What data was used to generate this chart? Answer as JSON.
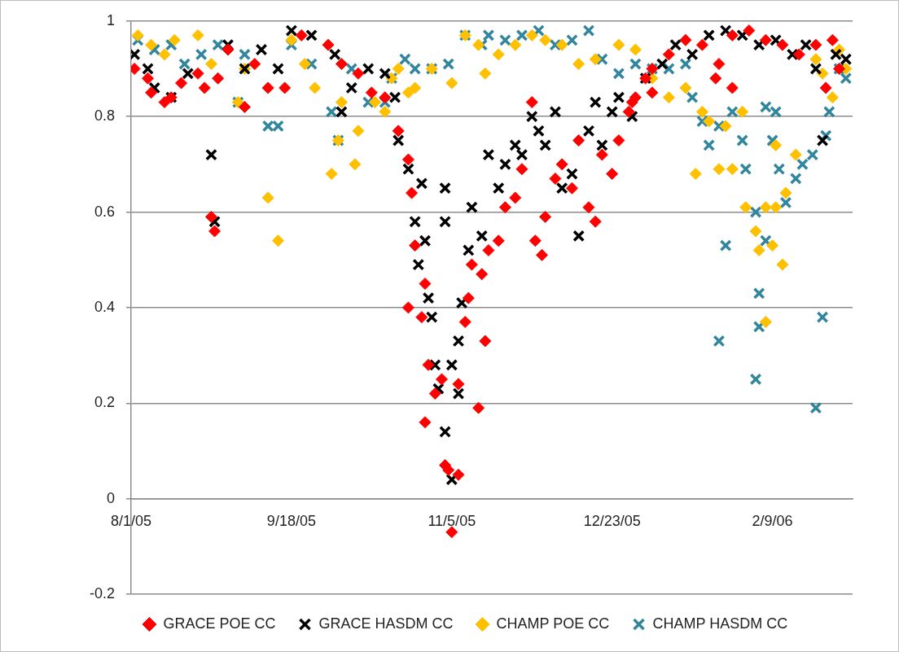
{
  "chart_data": {
    "type": "scatter",
    "xlim": [
      "2005-08-01",
      "2006-03-05"
    ],
    "xticks": [
      {
        "value": "2005-08-01",
        "label": "8/1/05"
      },
      {
        "value": "2005-09-18",
        "label": "9/18/05"
      },
      {
        "value": "2005-11-05",
        "label": "11/5/05"
      },
      {
        "value": "2005-12-23",
        "label": "12/23/05"
      },
      {
        "value": "2006-02-09",
        "label": "2/9/06"
      }
    ],
    "ylim": [
      -0.2,
      1
    ],
    "yticks": [
      -0.2,
      0,
      0.2,
      0.4,
      0.6,
      0.8,
      1
    ],
    "grid": "y",
    "legend": "bottom",
    "series": [
      {
        "name": "GRACE POE CC",
        "color": "#ff0000",
        "marker": "diamond",
        "x": [
          "2005-08-02",
          "2005-08-06",
          "2005-08-07",
          "2005-08-11",
          "2005-08-13",
          "2005-08-16",
          "2005-08-21",
          "2005-08-23",
          "2005-08-25",
          "2005-08-26",
          "2005-08-27",
          "2005-08-30",
          "2005-09-04",
          "2005-09-07",
          "2005-09-11",
          "2005-09-16",
          "2005-09-21",
          "2005-09-29",
          "2005-10-03",
          "2005-10-08",
          "2005-10-12",
          "2005-10-16",
          "2005-10-20",
          "2005-10-23",
          "2005-10-24",
          "2005-10-25",
          "2005-10-23",
          "2005-10-27",
          "2005-10-28",
          "2005-10-29",
          "2005-10-28",
          "2005-10-31",
          "2005-11-02",
          "2005-11-03",
          "2005-11-05",
          "2005-11-04",
          "2005-11-07",
          "2005-11-07",
          "2005-11-09",
          "2005-11-10",
          "2005-11-11",
          "2005-11-13",
          "2005-11-14",
          "2005-11-15",
          "2005-11-16",
          "2005-11-19",
          "2005-11-21",
          "2005-11-24",
          "2005-11-26",
          "2005-11-30",
          "2005-12-02",
          "2005-12-03",
          "2005-12-06",
          "2005-12-08",
          "2005-12-11",
          "2005-11-29",
          "2005-12-13",
          "2005-12-16",
          "2005-12-18",
          "2005-12-20",
          "2005-12-23",
          "2005-12-25",
          "2005-12-28",
          "2005-12-30",
          "2006-01-02",
          "2006-01-04",
          "2006-01-09",
          "2006-01-14",
          "2006-01-19",
          "2006-01-24",
          "2006-01-28",
          "2006-02-02",
          "2006-02-07",
          "2006-02-12",
          "2006-02-17",
          "2006-02-22",
          "2006-02-27",
          "2006-03-01",
          "2006-02-25",
          "2006-01-28",
          "2006-01-23",
          "2006-01-04",
          "2005-12-29"
        ],
        "values": [
          0.9,
          0.88,
          0.85,
          0.83,
          0.84,
          0.87,
          0.89,
          0.86,
          0.59,
          0.56,
          0.88,
          0.94,
          0.82,
          0.91,
          0.86,
          0.86,
          0.97,
          0.95,
          0.91,
          0.89,
          0.85,
          0.84,
          0.77,
          0.71,
          0.64,
          0.53,
          0.4,
          0.38,
          0.45,
          0.28,
          0.16,
          0.22,
          0.25,
          0.07,
          -0.07,
          0.06,
          0.05,
          0.24,
          0.37,
          0.42,
          0.49,
          0.19,
          0.47,
          0.33,
          0.52,
          0.54,
          0.61,
          0.63,
          0.69,
          0.54,
          0.51,
          0.59,
          0.67,
          0.7,
          0.65,
          0.83,
          0.75,
          0.61,
          0.58,
          0.72,
          0.68,
          0.75,
          0.81,
          0.84,
          0.88,
          0.9,
          0.93,
          0.96,
          0.95,
          0.91,
          0.97,
          0.98,
          0.96,
          0.95,
          0.93,
          0.95,
          0.96,
          0.9,
          0.86,
          0.86,
          0.88,
          0.85,
          0.83
        ]
      },
      {
        "name": "GRACE HASDM CC",
        "color": "#000000",
        "marker": "cross",
        "x": [
          "2005-08-02",
          "2005-08-06",
          "2005-08-08",
          "2005-08-13",
          "2005-08-18",
          "2005-08-25",
          "2005-08-26",
          "2005-08-30",
          "2005-09-04",
          "2005-09-09",
          "2005-09-14",
          "2005-09-18",
          "2005-09-24",
          "2005-10-01",
          "2005-10-03",
          "2005-10-06",
          "2005-10-11",
          "2005-10-16",
          "2005-10-19",
          "2005-10-20",
          "2005-10-23",
          "2005-10-27",
          "2005-10-25",
          "2005-10-28",
          "2005-10-26",
          "2005-10-29",
          "2005-10-30",
          "2005-10-31",
          "2005-11-01",
          "2005-11-03",
          "2005-11-05",
          "2005-11-05",
          "2005-11-07",
          "2005-11-03",
          "2005-11-03",
          "2005-11-07",
          "2005-11-08",
          "2005-11-10",
          "2005-11-11",
          "2005-11-14",
          "2005-11-16",
          "2005-11-19",
          "2005-11-21",
          "2005-11-24",
          "2005-11-26",
          "2005-11-29",
          "2005-12-01",
          "2005-12-03",
          "2005-12-06",
          "2005-12-08",
          "2005-12-11",
          "2005-12-13",
          "2005-12-16",
          "2005-12-18",
          "2005-12-20",
          "2005-12-23",
          "2005-12-25",
          "2005-12-29",
          "2006-01-02",
          "2006-01-07",
          "2006-01-11",
          "2006-01-16",
          "2006-01-21",
          "2006-01-26",
          "2006-01-31",
          "2006-02-05",
          "2006-02-10",
          "2006-02-15",
          "2006-02-19",
          "2006-02-22",
          "2006-02-24",
          "2006-02-28",
          "2006-03-03"
        ],
        "values": [
          0.93,
          0.9,
          0.86,
          0.84,
          0.89,
          0.72,
          0.58,
          0.95,
          0.9,
          0.94,
          0.9,
          0.98,
          0.97,
          0.93,
          0.81,
          0.86,
          0.9,
          0.89,
          0.84,
          0.75,
          0.69,
          0.66,
          0.58,
          0.54,
          0.49,
          0.42,
          0.38,
          0.28,
          0.23,
          0.14,
          0.04,
          0.28,
          0.33,
          0.65,
          0.58,
          0.22,
          0.41,
          0.52,
          0.61,
          0.55,
          0.72,
          0.65,
          0.7,
          0.74,
          0.72,
          0.8,
          0.77,
          0.74,
          0.81,
          0.65,
          0.68,
          0.55,
          0.77,
          0.83,
          0.74,
          0.81,
          0.84,
          0.8,
          0.88,
          0.91,
          0.95,
          0.93,
          0.97,
          0.98,
          0.97,
          0.95,
          0.96,
          0.93,
          0.95,
          0.9,
          0.75,
          0.93,
          0.92
        ]
      },
      {
        "name": "CHAMP POE CC",
        "color": "#ffc000",
        "marker": "diamond",
        "x": [
          "2005-08-03",
          "2005-08-07",
          "2005-08-11",
          "2005-08-14",
          "2005-08-21",
          "2005-08-25",
          "2005-09-02",
          "2005-09-04",
          "2005-09-11",
          "2005-09-14",
          "2005-09-18",
          "2005-09-22",
          "2005-09-25",
          "2005-09-30",
          "2005-10-02",
          "2005-10-03",
          "2005-10-07",
          "2005-10-08",
          "2005-10-13",
          "2005-10-16",
          "2005-10-18",
          "2005-10-20",
          "2005-10-23",
          "2005-10-25",
          "2005-10-30",
          "2005-11-05",
          "2005-11-09",
          "2005-11-13",
          "2005-11-15",
          "2005-11-19",
          "2005-11-24",
          "2005-11-29",
          "2005-12-03",
          "2005-12-08",
          "2005-12-13",
          "2005-12-18",
          "2005-12-25",
          "2005-12-30",
          "2006-01-04",
          "2006-01-09",
          "2006-01-14",
          "2006-01-17",
          "2006-01-19",
          "2006-01-21",
          "2006-01-24",
          "2006-01-26",
          "2006-01-28",
          "2006-01-31",
          "2006-02-01",
          "2006-02-04",
          "2006-02-05",
          "2006-02-07",
          "2006-02-07",
          "2006-02-10",
          "2006-02-12",
          "2006-02-13",
          "2006-02-16",
          "2006-02-22",
          "2006-02-24",
          "2006-02-27",
          "2006-03-01",
          "2006-03-03",
          "2006-02-10",
          "2006-02-09"
        ],
        "values": [
          0.97,
          0.95,
          0.93,
          0.96,
          0.97,
          0.91,
          0.83,
          0.9,
          0.63,
          0.54,
          0.96,
          0.91,
          0.86,
          0.68,
          0.75,
          0.83,
          0.7,
          0.77,
          0.83,
          0.81,
          0.88,
          0.9,
          0.85,
          0.86,
          0.9,
          0.87,
          0.97,
          0.95,
          0.89,
          0.93,
          0.95,
          0.97,
          0.96,
          0.95,
          0.91,
          0.92,
          0.95,
          0.94,
          0.88,
          0.84,
          0.86,
          0.68,
          0.81,
          0.79,
          0.69,
          0.78,
          0.69,
          0.81,
          0.61,
          0.56,
          0.52,
          0.37,
          0.61,
          0.74,
          0.49,
          0.64,
          0.72,
          0.92,
          0.89,
          0.84,
          0.94,
          0.9,
          0.61,
          0.53
        ]
      },
      {
        "name": "CHAMP HASDM CC",
        "color": "#31859c",
        "marker": "cross",
        "x": [
          "2005-08-03",
          "2005-08-08",
          "2005-08-13",
          "2005-08-17",
          "2005-08-22",
          "2005-08-27",
          "2005-09-02",
          "2005-09-04",
          "2005-09-11",
          "2005-09-14",
          "2005-09-18",
          "2005-09-24",
          "2005-09-30",
          "2005-10-02",
          "2005-10-06",
          "2005-10-11",
          "2005-10-16",
          "2005-10-18",
          "2005-10-22",
          "2005-10-25",
          "2005-10-30",
          "2005-11-04",
          "2005-11-09",
          "2005-11-14",
          "2005-11-16",
          "2005-11-21",
          "2005-11-26",
          "2005-12-01",
          "2005-12-06",
          "2005-12-11",
          "2005-12-16",
          "2005-12-20",
          "2005-12-25",
          "2005-12-30",
          "2006-01-04",
          "2006-01-09",
          "2006-01-14",
          "2006-01-16",
          "2006-01-19",
          "2006-01-21",
          "2006-01-24",
          "2006-01-24",
          "2006-01-26",
          "2006-01-28",
          "2006-01-31",
          "2006-02-01",
          "2006-02-04",
          "2006-02-05",
          "2006-02-07",
          "2006-02-04",
          "2006-02-05",
          "2006-02-07",
          "2006-02-09",
          "2006-02-10",
          "2006-02-11",
          "2006-02-13",
          "2006-02-16",
          "2006-02-18",
          "2006-02-21",
          "2006-02-22",
          "2006-02-24",
          "2006-02-25",
          "2006-02-26",
          "2006-03-01",
          "2006-03-03"
        ],
        "values": [
          0.96,
          0.94,
          0.95,
          0.91,
          0.93,
          0.95,
          0.83,
          0.93,
          0.78,
          0.78,
          0.95,
          0.91,
          0.81,
          0.75,
          0.9,
          0.83,
          0.83,
          0.88,
          0.92,
          0.9,
          0.9,
          0.91,
          0.97,
          0.95,
          0.97,
          0.96,
          0.97,
          0.98,
          0.95,
          0.96,
          0.98,
          0.92,
          0.89,
          0.91,
          0.9,
          0.9,
          0.91,
          0.84,
          0.79,
          0.74,
          0.78,
          0.33,
          0.53,
          0.81,
          0.75,
          0.69,
          0.6,
          0.43,
          0.54,
          0.25,
          0.36,
          0.82,
          0.75,
          0.81,
          0.69,
          0.62,
          0.67,
          0.7,
          0.72,
          0.19,
          0.38,
          0.76,
          0.81,
          0.9,
          0.88
        ]
      }
    ]
  }
}
